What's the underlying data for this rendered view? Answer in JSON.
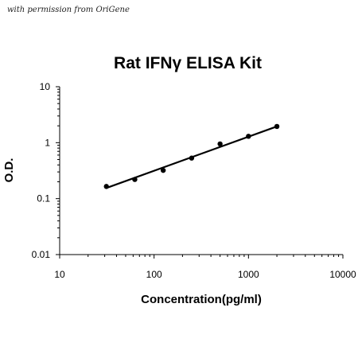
{
  "watermark": "with permission from OriGene",
  "chart_data": {
    "type": "scatter",
    "title": "Rat IFNγ ELISA Kit",
    "xlabel": "Concentration(pg/ml)",
    "ylabel": "O.D.",
    "x_scale": "log",
    "y_scale": "log",
    "xlim": [
      10,
      10000
    ],
    "ylim": [
      0.01,
      10
    ],
    "x_ticks": [
      "10",
      "100",
      "1000",
      "10000"
    ],
    "y_ticks": [
      "10",
      "1",
      "0.1",
      "0.01"
    ],
    "grid": false,
    "legend": "none",
    "series": [
      {
        "x": [
          31.25,
          62.5,
          125,
          250,
          500,
          1000,
          2000
        ],
        "y": [
          0.165,
          0.22,
          0.32,
          0.53,
          0.95,
          1.3,
          1.95
        ]
      }
    ],
    "trendline": {
      "x": [
        31.25,
        2000
      ],
      "y": [
        0.155,
        1.95
      ]
    },
    "colors": {
      "marker": "#000000",
      "line": "#000000"
    }
  }
}
